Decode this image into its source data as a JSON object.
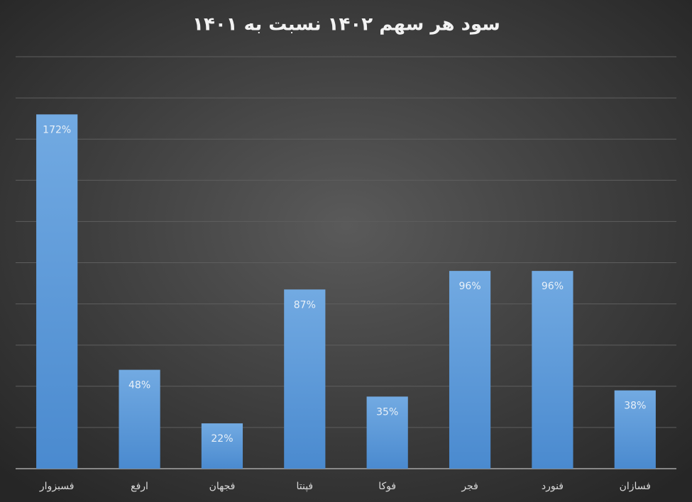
{
  "chart_data": {
    "type": "bar",
    "title": "سود هر سهم ۱۴۰۲ نسبت به ۱۴۰۱",
    "categories": [
      "فسبزوار",
      "ارفع",
      "فجهان",
      "فپنتا",
      "فوکا",
      "فجر",
      "فنورد",
      "فسازان"
    ],
    "values": [
      172,
      48,
      22,
      87,
      35,
      96,
      96,
      38
    ],
    "value_labels": [
      "172%",
      "48%",
      "22%",
      "87%",
      "35%",
      "96%",
      "96%",
      "38%"
    ],
    "color": "#5b9bd5",
    "ylim": [
      0,
      200
    ],
    "yticks": [
      0,
      20,
      40,
      60,
      80,
      100,
      120,
      140,
      160,
      180,
      200
    ],
    "grid": true
  }
}
